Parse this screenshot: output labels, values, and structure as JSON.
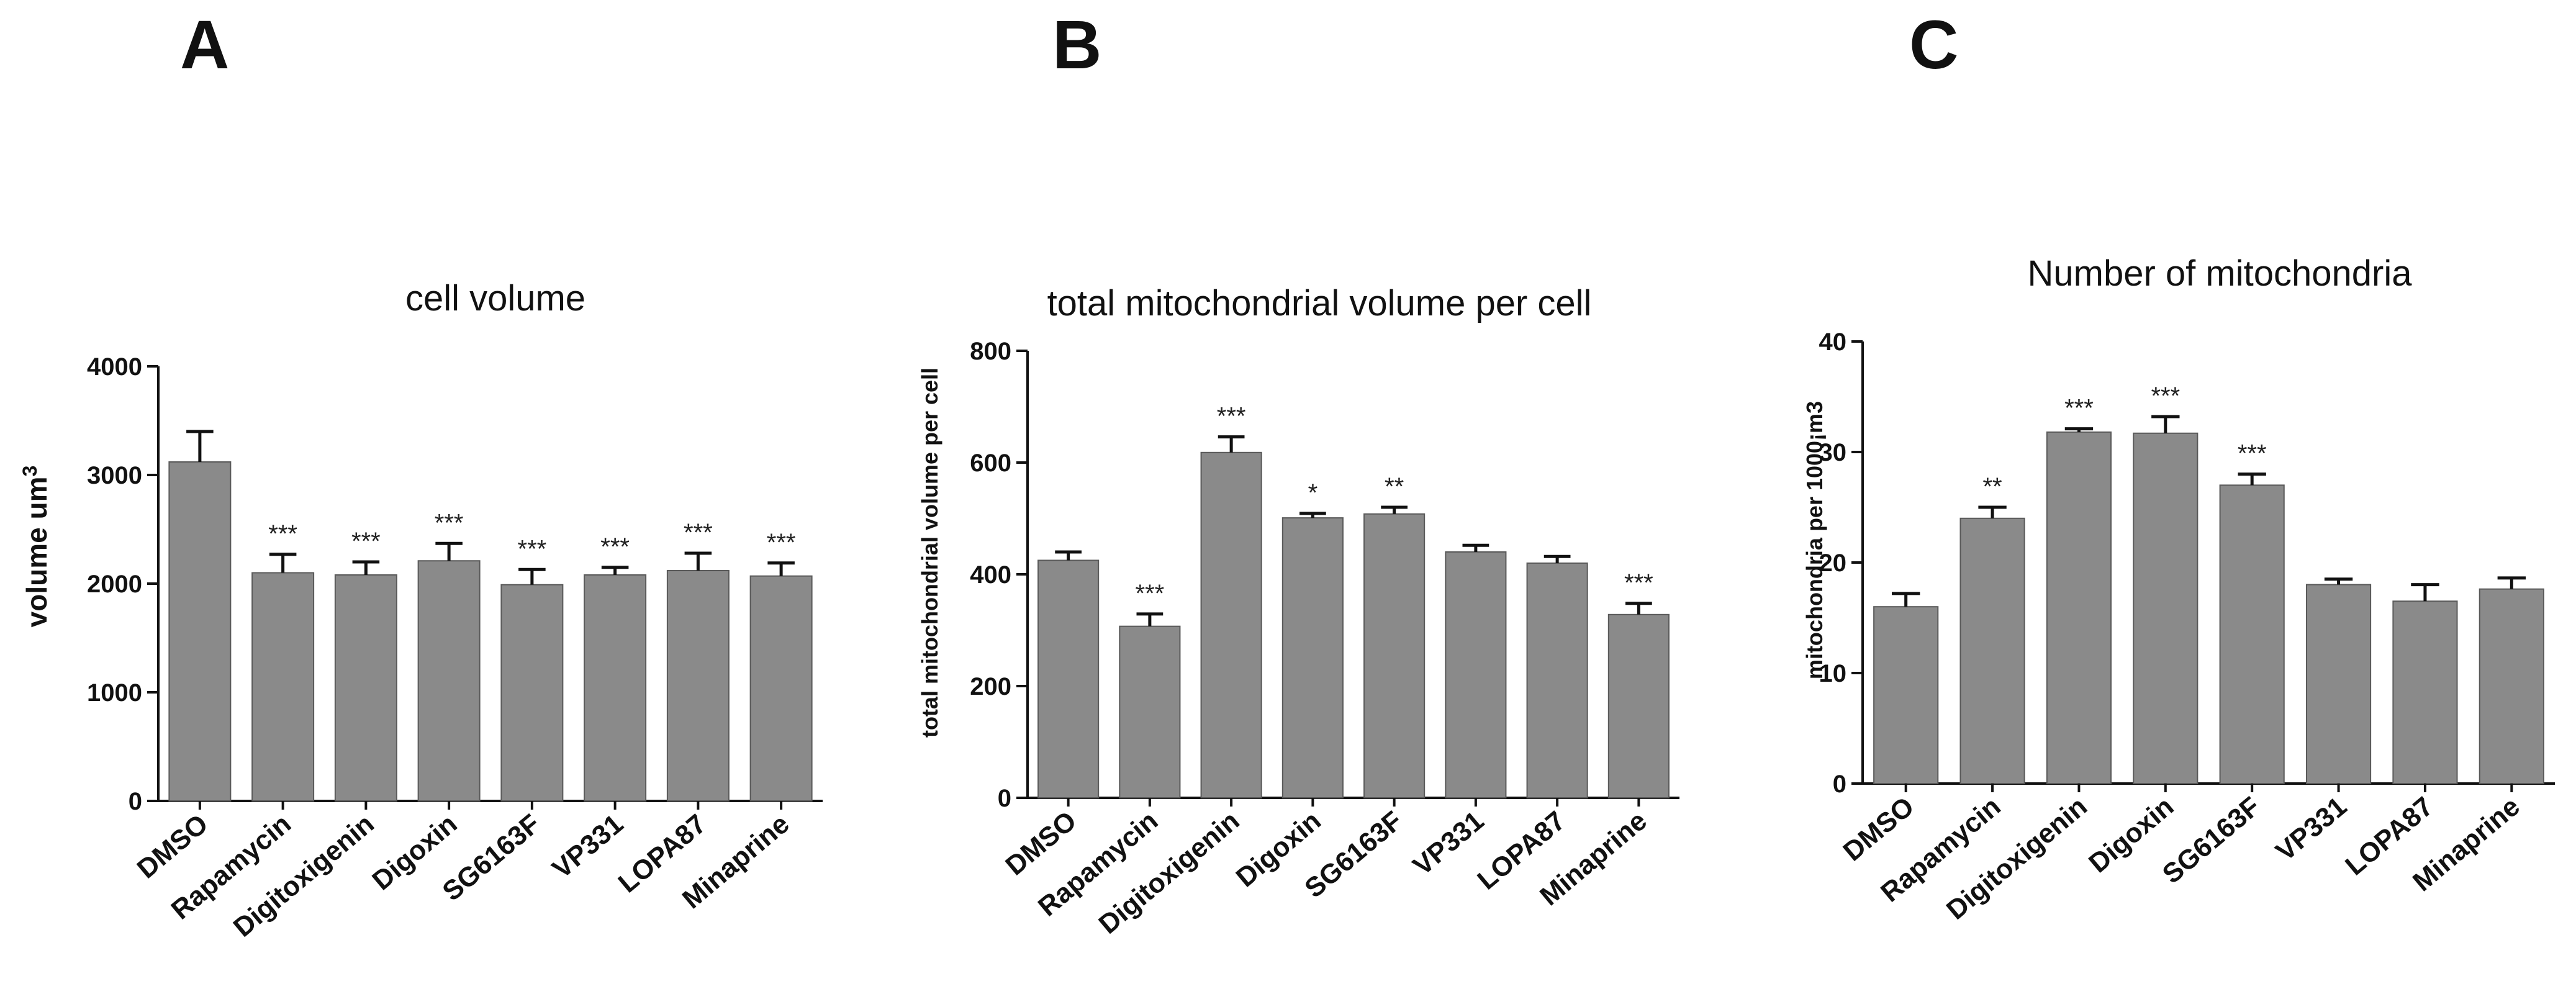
{
  "colors": {
    "bar": "#8a8a8a",
    "bar_edge": "#5a5a5a",
    "axis": "#111111",
    "text": "#111111"
  },
  "chart_data": [
    {
      "type": "bar",
      "panel": "A",
      "title": "cell volume",
      "xlabel": "",
      "ylabel": "volume um",
      "ylabel_superscript": "3",
      "ylim": [
        0,
        4000
      ],
      "yticks": [
        "0",
        "1000",
        "2000",
        "3000",
        "4000"
      ],
      "grid": false,
      "categories": [
        "DMSO",
        "Rapamycin",
        "Digitoxigenin",
        "Digoxin",
        "SG6163F",
        "VP331",
        "LOPA87",
        "Minaprine"
      ],
      "values": [
        3120,
        2100,
        2080,
        2210,
        1990,
        2080,
        2120,
        2070
      ],
      "errors": [
        280,
        170,
        120,
        160,
        140,
        70,
        160,
        120
      ],
      "significance": [
        "",
        "***",
        "***",
        "***",
        "***",
        "***",
        "***",
        "***"
      ]
    },
    {
      "type": "bar",
      "panel": "B",
      "title": "total mitochondrial volume per cell",
      "xlabel": "",
      "ylabel": "total mitochondrial volume per cell",
      "ylim": [
        0,
        800
      ],
      "yticks": [
        "0",
        "200",
        "400",
        "600",
        "800"
      ],
      "grid": false,
      "categories": [
        "DMSO",
        "Rapamycin",
        "Digitoxigenin",
        "Digoxin",
        "SG6163F",
        "VP331",
        "LOPA87",
        "Minaprine"
      ],
      "values": [
        425,
        307,
        618,
        501,
        508,
        440,
        420,
        328
      ],
      "errors": [
        15,
        22,
        28,
        8,
        12,
        12,
        12,
        20
      ],
      "significance": [
        "",
        "***",
        "***",
        "*",
        "**",
        "",
        "",
        "***"
      ]
    },
    {
      "type": "bar",
      "panel": "C",
      "title": "Number of mitochondria",
      "xlabel": "",
      "ylabel": "mitochondria per 1000¡m3",
      "ylim": [
        0,
        40
      ],
      "yticks": [
        "0",
        "10",
        "20",
        "30",
        "40"
      ],
      "grid": false,
      "categories": [
        "DMSO",
        "Rapamycin",
        "Digitoxigenin",
        "Digoxin",
        "SG6163F",
        "VP331",
        "LOPA87",
        "Minaprine"
      ],
      "values": [
        16,
        24,
        31.8,
        31.7,
        27,
        18,
        16.5,
        17.6
      ],
      "errors": [
        1.2,
        1.0,
        0.3,
        1.5,
        1.0,
        0.5,
        1.5,
        1.0
      ],
      "significance": [
        "",
        "**",
        "***",
        "***",
        "***",
        "",
        "",
        ""
      ]
    }
  ]
}
